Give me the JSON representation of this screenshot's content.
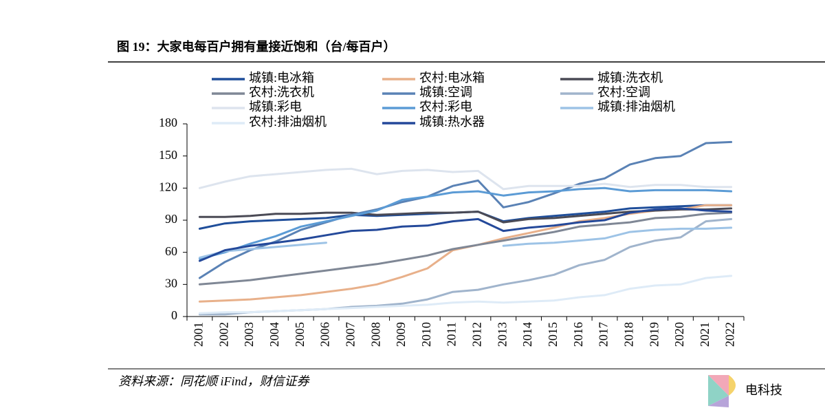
{
  "chart_data": {
    "type": "line",
    "title": "图 19：大家电每百户拥有量接近饱和（台/每百户）",
    "source": "资料来源：同花顺 iFind，财信证券",
    "watermark": "电科技",
    "categories": [
      "2001",
      "2002",
      "2003",
      "2004",
      "2005",
      "2006",
      "2007",
      "2008",
      "2009",
      "2010",
      "2011",
      "2012",
      "2013",
      "2014",
      "2015",
      "2016",
      "2017",
      "2018",
      "2019",
      "2020",
      "2021",
      "2022"
    ],
    "ylim": [
      0,
      180
    ],
    "yticks": [
      0,
      30,
      60,
      90,
      120,
      150,
      180
    ],
    "grid": false,
    "legend": "top",
    "series": [
      {
        "name": "城镇:电冰箱",
        "color": "#1f4e9a",
        "values": [
          82,
          87,
          89,
          90,
          91,
          92,
          95,
          94,
          95,
          96,
          97,
          98,
          89,
          92,
          94,
          96,
          98,
          101,
          102,
          103,
          104,
          104
        ]
      },
      {
        "name": "农村:电冰箱",
        "color": "#e8b08a",
        "values": [
          14,
          15,
          16,
          18,
          20,
          23,
          26,
          30,
          37,
          45,
          62,
          67,
          73,
          78,
          83,
          89,
          92,
          96,
          99,
          100,
          104,
          104
        ]
      },
      {
        "name": "城镇:洗衣机",
        "color": "#4a4a55",
        "values": [
          93,
          93,
          94,
          96,
          96,
          97,
          97,
          95,
          96,
          97,
          97,
          98,
          88,
          91,
          92,
          94,
          96,
          98,
          99,
          100,
          100,
          101
        ]
      },
      {
        "name": "农村:洗衣机",
        "color": "#7f8795",
        "values": [
          30,
          32,
          34,
          37,
          40,
          43,
          46,
          49,
          53,
          57,
          63,
          67,
          71,
          75,
          79,
          84,
          86,
          88,
          92,
          93,
          96,
          97
        ]
      },
      {
        "name": "城镇:空调",
        "color": "#5a82b5",
        "values": [
          36,
          51,
          62,
          70,
          81,
          88,
          95,
          100,
          107,
          112,
          122,
          127,
          102,
          107,
          115,
          124,
          129,
          142,
          148,
          150,
          162,
          163
        ]
      },
      {
        "name": "农村:空调",
        "color": "#a0b4cc",
        "values": [
          2,
          2,
          4,
          5,
          6,
          7,
          9,
          10,
          12,
          16,
          23,
          25,
          30,
          34,
          39,
          48,
          53,
          65,
          71,
          74,
          89,
          91
        ]
      },
      {
        "name": "城镇:彩电",
        "color": "#dde4ee",
        "values": [
          120,
          126,
          131,
          133,
          135,
          137,
          138,
          133,
          136,
          137,
          135,
          136,
          119,
          122,
          122,
          122,
          124,
          121,
          123,
          123,
          121,
          121
        ]
      },
      {
        "name": "农村:彩电",
        "color": "#5b9bd5",
        "values": [
          54,
          60,
          68,
          75,
          84,
          89,
          94,
          99,
          109,
          112,
          116,
          117,
          113,
          116,
          117,
          119,
          120,
          117,
          118,
          118,
          118,
          117
        ]
      },
      {
        "name": "城镇:排油烟机",
        "color": "#9dc3e6",
        "values": [
          55,
          61,
          63,
          65,
          67,
          69,
          null,
          null,
          null,
          null,
          null,
          null,
          66,
          68,
          69,
          71,
          73,
          79,
          81,
          82,
          82,
          83
        ]
      },
      {
        "name": "农村:排油烟机",
        "color": "#deebf7",
        "values": [
          3,
          4,
          4,
          5,
          6,
          7,
          8,
          9,
          10,
          11,
          13,
          14,
          13,
          14,
          15,
          18,
          20,
          26,
          29,
          30,
          36,
          38
        ]
      },
      {
        "name": "城镇:热水器",
        "color": "#24499a",
        "values": [
          52,
          62,
          66,
          69,
          72,
          76,
          80,
          81,
          84,
          85,
          89,
          91,
          80,
          83,
          85,
          88,
          90,
          97,
          100,
          101,
          99,
          98
        ]
      }
    ]
  }
}
